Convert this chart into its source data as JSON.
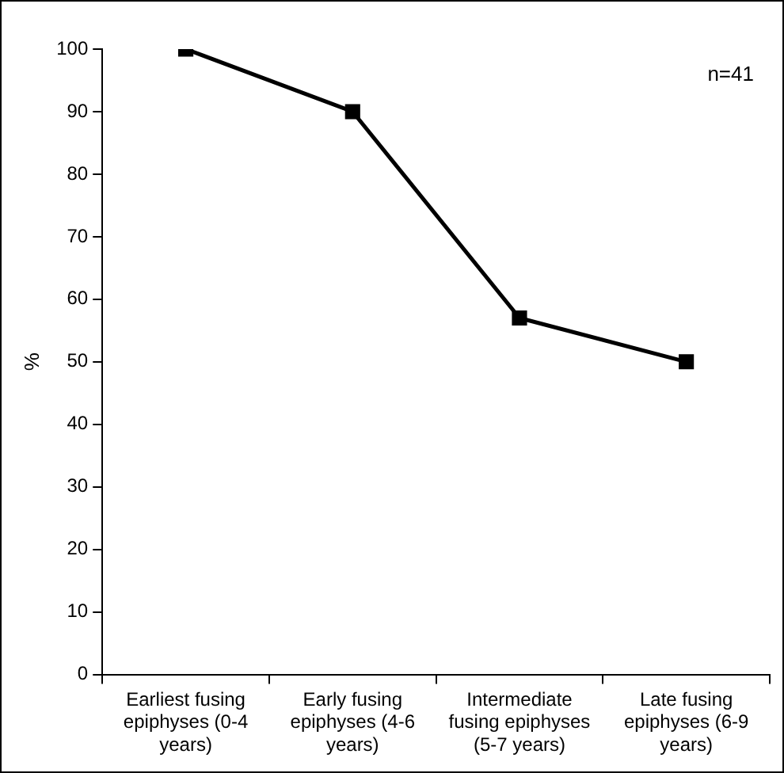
{
  "chart_data": {
    "type": "line",
    "ylabel": "%",
    "categories": [
      "Earliest fusing epiphyses (0-4 years)",
      "Early fusing epiphyses (4-6 years)",
      "Intermediate fusing epiphyses (5-7 years)",
      "Late fusing epiphyses (6-9 years)"
    ],
    "series": [
      {
        "color": "#000000",
        "values": [
          100,
          90,
          57,
          50
        ]
      }
    ],
    "ylim": [
      0,
      100
    ],
    "yticks": [
      0,
      10,
      20,
      30,
      40,
      50,
      60,
      70,
      80,
      90,
      100
    ],
    "grid": false,
    "legend": false,
    "marker": "square",
    "line_style": "solid",
    "annotations": [
      "n=41"
    ]
  }
}
